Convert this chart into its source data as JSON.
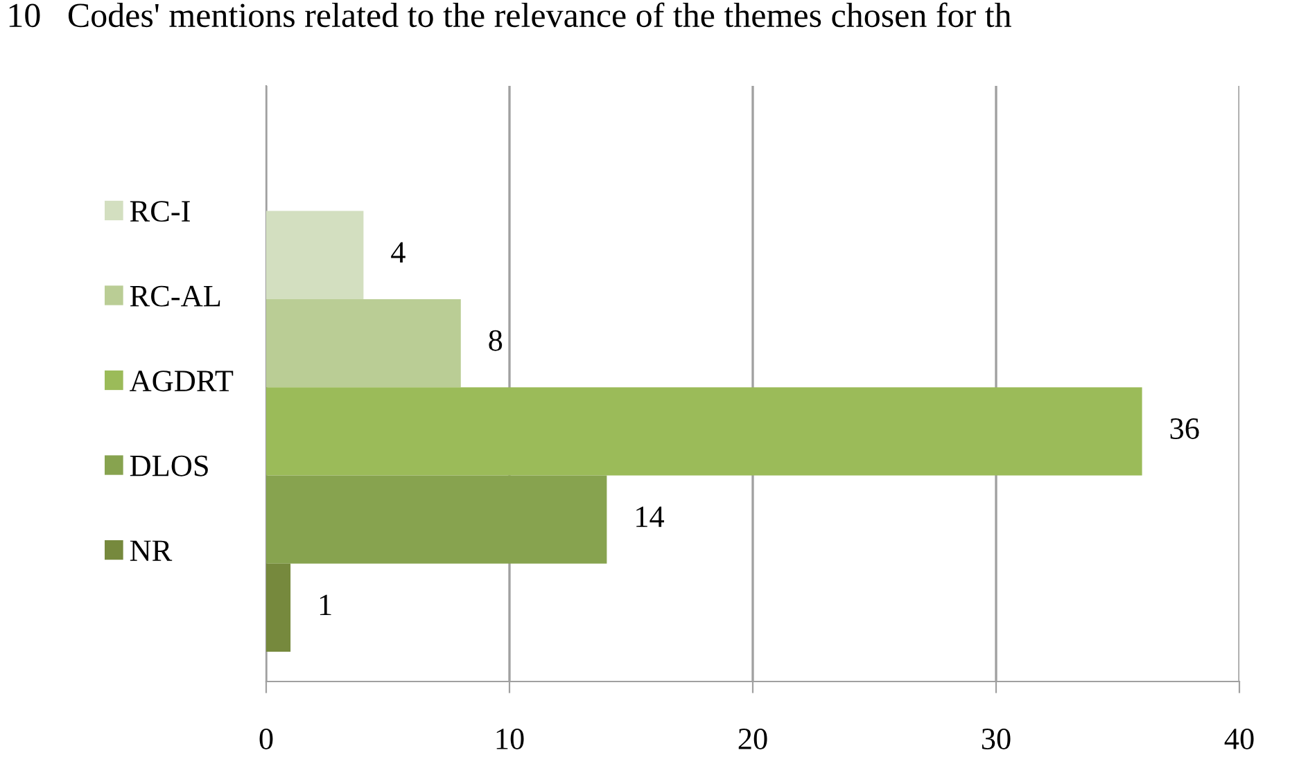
{
  "chart_data": {
    "type": "bar",
    "orientation": "horizontal",
    "title": "10   Codes' mentions related to the relevance of the themes chosen for th",
    "categories": [
      null
    ],
    "series": [
      {
        "name": "RC-I",
        "color": "#d3dfc0",
        "values": [
          4
        ]
      },
      {
        "name": "RC-AL",
        "color": "#bacd95",
        "values": [
          8
        ]
      },
      {
        "name": "AGDRT",
        "color": "#9bbb59",
        "values": [
          36
        ]
      },
      {
        "name": "DLOS",
        "color": "#87a34f",
        "values": [
          14
        ]
      },
      {
        "name": "NR",
        "color": "#76893d",
        "values": [
          1
        ]
      }
    ],
    "xlim": [
      0,
      40
    ],
    "xticks": [
      0,
      10,
      20,
      30,
      40
    ],
    "grid": "x",
    "legend": "left",
    "data_labels": true
  }
}
